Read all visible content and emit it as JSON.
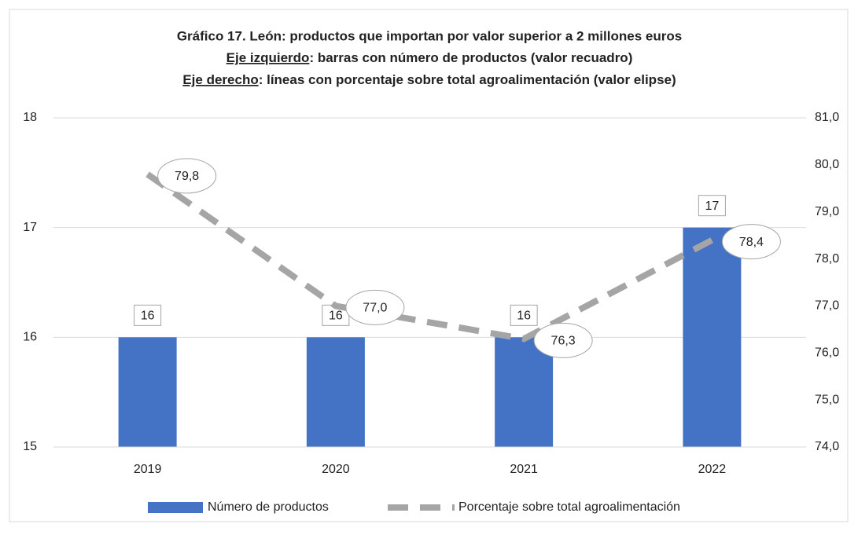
{
  "chart_data": {
    "type": "combo",
    "title": "Gráfico 17. León: productos que importan por valor superior a 2 millones euros",
    "subtitle_lines": [
      {
        "underlined": "Eje izquierdo",
        "text": ": barras con número de productos (valor recuadro)"
      },
      {
        "underlined": "Eje derecho",
        "text": ": líneas con porcentaje sobre total agroalimentación (valor elipse)"
      }
    ],
    "categories": [
      "2019",
      "2020",
      "2021",
      "2022"
    ],
    "series": [
      {
        "name": "Número de productos",
        "type": "bar",
        "color": "#4472c4",
        "values": [
          16,
          16,
          16,
          17
        ]
      },
      {
        "name": "Porcentaje sobre total agroalimentación",
        "type": "line",
        "axis": "y2",
        "color": "#a5a5a5",
        "values": [
          79.8,
          77.0,
          76.3,
          78.4
        ],
        "value_labels": [
          "79,8",
          "77,0",
          "76,3",
          "78,4"
        ]
      }
    ],
    "ylim": [
      15,
      18
    ],
    "yticks": [
      15,
      16,
      17,
      18
    ],
    "y2lim": [
      74,
      81
    ],
    "y2ticks": [
      {
        "value": 74,
        "label": "74,0"
      },
      {
        "value": 75,
        "label": "75,0"
      },
      {
        "value": 76,
        "label": "76,0"
      },
      {
        "value": 77,
        "label": "77,0"
      },
      {
        "value": 78,
        "label": "78,0"
      },
      {
        "value": 79,
        "label": "79,0"
      },
      {
        "value": 80,
        "label": "80,0"
      },
      {
        "value": 81,
        "label": "81,0"
      }
    ],
    "grid": true,
    "legend": "bottom"
  }
}
